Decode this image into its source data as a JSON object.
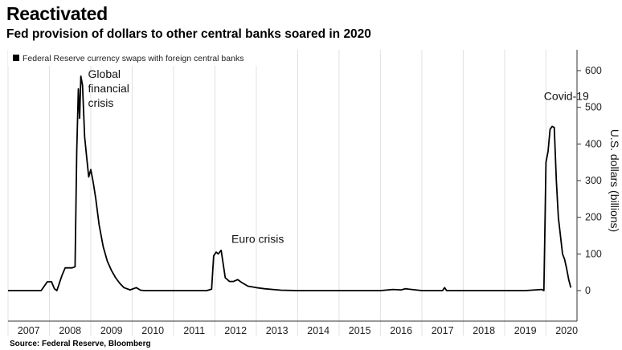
{
  "header": {
    "title": "Reactivated",
    "subtitle": "Fed provision of dollars to other central banks soared in 2020"
  },
  "footer": {
    "source": "Source: Federal Reserve, Bloomberg"
  },
  "chart_data": {
    "type": "line",
    "title": "Reactivated",
    "subtitle": "Fed provision of dollars to other central banks soared in 2020",
    "xlabel": "",
    "ylabel": "U.S. dollars (billions)",
    "xlim": [
      2007,
      2020.75
    ],
    "ylim": [
      0,
      600
    ],
    "y_ticks": [
      0,
      100,
      200,
      300,
      400,
      500,
      600
    ],
    "y_tick_labels": [
      "0",
      "100",
      "200",
      "300",
      "400",
      "500",
      "600"
    ],
    "x_tick_labels": [
      "2007",
      "2008",
      "2009",
      "2010",
      "2011",
      "2012",
      "2013",
      "2014",
      "2015",
      "2016",
      "2017",
      "2018",
      "2019",
      "2020"
    ],
    "grid": "vertical",
    "y_axis_side": "right",
    "legend": {
      "position": "top-left",
      "entries": [
        "Federal Reserve currency swaps with foreign central banks"
      ]
    },
    "annotations": [
      {
        "text": [
          "Global",
          "financial",
          "crisis"
        ],
        "x": 2008.7,
        "y": 580
      },
      {
        "text": [
          "Euro crisis"
        ],
        "x": 2012.4,
        "y": 130
      },
      {
        "text": [
          "Covid-19"
        ],
        "x": 2019.95,
        "y": 520
      }
    ],
    "series": [
      {
        "name": "Federal Reserve currency swaps with foreign central banks",
        "color": "#000000",
        "x": [
          2007.0,
          2007.8,
          2007.95,
          2008.05,
          2008.12,
          2008.18,
          2008.3,
          2008.38,
          2008.45,
          2008.55,
          2008.62,
          2008.66,
          2008.7,
          2008.73,
          2008.76,
          2008.8,
          2008.85,
          2008.9,
          2008.95,
          2009.0,
          2009.05,
          2009.08,
          2009.12,
          2009.2,
          2009.3,
          2009.4,
          2009.5,
          2009.6,
          2009.7,
          2009.8,
          2009.95,
          2010.1,
          2010.2,
          2010.3,
          2010.5,
          2011.0,
          2011.5,
          2011.8,
          2011.92,
          2011.97,
          2012.03,
          2012.08,
          2012.15,
          2012.25,
          2012.35,
          2012.45,
          2012.55,
          2012.65,
          2012.8,
          2013.0,
          2013.2,
          2013.4,
          2013.6,
          2014.0,
          2015.0,
          2016.0,
          2016.3,
          2016.5,
          2016.6,
          2017.0,
          2017.5,
          2017.55,
          2017.6,
          2018.0,
          2019.0,
          2019.5,
          2019.9,
          2019.95,
          2020.0,
          2020.05,
          2020.1,
          2020.15,
          2020.2,
          2020.25,
          2020.3,
          2020.35,
          2020.4,
          2020.45,
          2020.5,
          2020.55,
          2020.6
        ],
        "values": [
          0,
          0,
          24,
          24,
          5,
          0,
          40,
          62,
          62,
          62,
          65,
          380,
          550,
          470,
          585,
          560,
          420,
          365,
          310,
          330,
          300,
          280,
          250,
          180,
          120,
          80,
          55,
          35,
          20,
          8,
          2,
          8,
          1,
          0,
          0,
          0,
          0,
          0,
          4,
          95,
          105,
          100,
          110,
          35,
          25,
          25,
          30,
          22,
          12,
          8,
          5,
          3,
          1,
          0,
          0,
          0,
          3,
          2,
          5,
          0,
          0,
          8,
          0,
          0,
          0,
          0,
          3,
          0,
          350,
          380,
          440,
          448,
          445,
          300,
          200,
          150,
          100,
          85,
          60,
          30,
          8
        ]
      }
    ]
  }
}
